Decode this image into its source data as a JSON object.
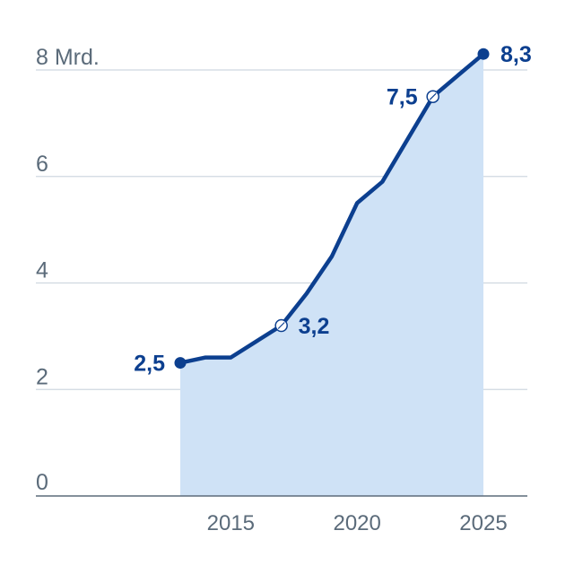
{
  "chart_data": {
    "type": "area",
    "x": [
      2013,
      2014,
      2015,
      2016,
      2017,
      2018,
      2019,
      2020,
      2021,
      2022,
      2023,
      2024,
      2025
    ],
    "values": [
      2.5,
      2.6,
      2.6,
      2.9,
      3.2,
      3.8,
      4.5,
      5.5,
      5.9,
      6.7,
      7.5,
      7.9,
      8.3
    ],
    "xlim": [
      2010,
      2026
    ],
    "ylim": [
      0,
      8
    ],
    "yticks": [
      0,
      2,
      4,
      6,
      8
    ],
    "ytick_labels": [
      "0",
      "2",
      "4",
      "6",
      "8 Mrd."
    ],
    "xticks": [
      2015,
      2020,
      2025
    ],
    "xtick_labels": [
      "2015",
      "2020",
      "2025"
    ],
    "grid": true,
    "data_labels": [
      {
        "x": 2013,
        "y": 2.5,
        "text": "2,5",
        "marker": "filled",
        "side": "left"
      },
      {
        "x": 2017,
        "y": 3.2,
        "text": "3,2",
        "marker": "open",
        "side": "right"
      },
      {
        "x": 2023,
        "y": 7.5,
        "text": "7,5",
        "marker": "open",
        "side": "left"
      },
      {
        "x": 2025,
        "y": 8.3,
        "text": "8,3",
        "marker": "filled",
        "side": "right"
      }
    ],
    "colors": {
      "line": "#0c3f8f",
      "fill": "#cfe2f6",
      "grid": "#cfd8e0",
      "axis_text": "#5b6b7a"
    }
  }
}
